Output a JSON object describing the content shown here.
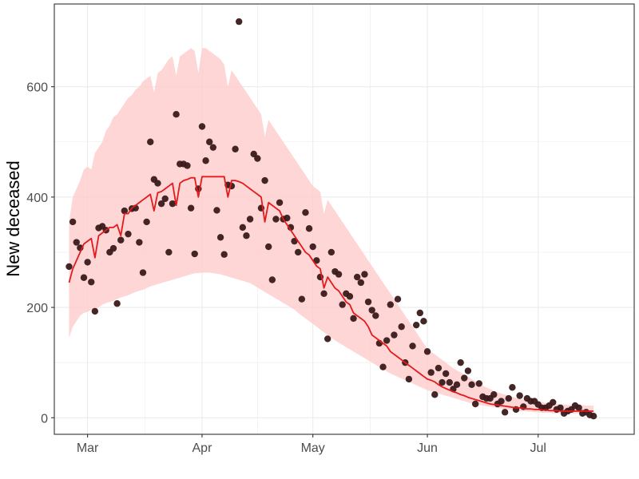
{
  "chart_data": {
    "type": "scatter",
    "title": "",
    "xlabel": "",
    "ylabel": "New deceased",
    "x_ticks": [
      {
        "label": "Mar",
        "date": "2020-03-01"
      },
      {
        "label": "Apr",
        "date": "2020-04-01"
      },
      {
        "label": "May",
        "date": "2020-05-01"
      },
      {
        "label": "Jun",
        "date": "2020-06-01"
      },
      {
        "label": "Jul",
        "date": "2020-07-01"
      }
    ],
    "y_ticks": [
      0,
      200,
      400,
      600
    ],
    "xlim": [
      "2020-02-21",
      "2020-07-27"
    ],
    "ylim": [
      -30,
      750
    ],
    "grid": true,
    "legend": "none",
    "colors": {
      "points": "#3a1a1a",
      "fit_line": "#e41a1c",
      "band": "#ffcccc",
      "grid": "#ebebeb",
      "panel_border": "#333333"
    },
    "series": [
      {
        "kind": "points",
        "x_start": "2020-02-25",
        "y": [
          274,
          355,
          318,
          308,
          254,
          282,
          246,
          193,
          344,
          347,
          340,
          300,
          307,
          207,
          322,
          375,
          333,
          379,
          380,
          318,
          263,
          355,
          500,
          432,
          425,
          388,
          397,
          300,
          388,
          550,
          460,
          460,
          457,
          380,
          297,
          415,
          528,
          466,
          500,
          490,
          376,
          327,
          296,
          422,
          420,
          487,
          718,
          345,
          330,
          360,
          478,
          470,
          380,
          430,
          310,
          250,
          360,
          390,
          360,
          362,
          345,
          320,
          300,
          215,
          372,
          343,
          310,
          285,
          255,
          225,
          143,
          300,
          265,
          260,
          205,
          225,
          220,
          180,
          255,
          245,
          260,
          210,
          195,
          185,
          135,
          92,
          140,
          205,
          150,
          215,
          165,
          100,
          70,
          130,
          168,
          190,
          175,
          120,
          82,
          42,
          90,
          64,
          80,
          64,
          52,
          60,
          100,
          72,
          85,
          60,
          25,
          62,
          38,
          35,
          35,
          42,
          25,
          30,
          10,
          35,
          55,
          15,
          40,
          20,
          35,
          30,
          30,
          24,
          18,
          18,
          22,
          28,
          15,
          18,
          8,
          12,
          15,
          22,
          18,
          8,
          10,
          5,
          3
        ]
      },
      {
        "kind": "line",
        "x_start": "2020-02-25",
        "y": [
          245,
          270,
          285,
          300,
          315,
          320,
          325,
          290,
          330,
          335,
          340,
          345,
          345,
          350,
          330,
          370,
          370,
          380,
          385,
          390,
          395,
          400,
          405,
          375,
          408,
          410,
          415,
          420,
          425,
          385,
          425,
          430,
          432,
          435,
          435,
          400,
          437,
          437,
          437,
          437,
          437,
          437,
          437,
          400,
          430,
          430,
          428,
          425,
          420,
          415,
          410,
          405,
          400,
          355,
          390,
          385,
          380,
          375,
          360,
          350,
          340,
          330,
          320,
          310,
          300,
          295,
          285,
          275,
          270,
          235,
          255,
          245,
          235,
          230,
          220,
          210,
          205,
          190,
          185,
          180,
          175,
          165,
          150,
          145,
          140,
          135,
          130,
          120,
          115,
          110,
          105,
          100,
          95,
          90,
          85,
          80,
          75,
          70,
          68,
          65,
          60,
          56,
          53,
          50,
          47,
          45,
          42,
          40,
          37,
          35,
          33,
          31,
          29,
          27,
          25,
          24,
          23,
          22,
          21,
          20,
          19,
          18,
          18,
          17,
          16,
          16,
          15,
          15,
          14,
          14,
          13,
          13,
          13,
          12,
          12,
          12,
          12,
          12,
          12,
          12,
          12,
          12,
          12
        ]
      },
      {
        "kind": "band",
        "x_start": "2020-02-25",
        "lower": [
          145,
          165,
          175,
          185,
          190,
          192,
          195,
          197,
          200,
          205,
          208,
          210,
          212,
          215,
          218,
          220,
          222,
          225,
          228,
          230,
          232,
          235,
          238,
          240,
          242,
          244,
          246,
          248,
          250,
          252,
          254,
          256,
          258,
          260,
          262,
          262,
          263,
          263,
          263,
          262,
          261,
          260,
          258,
          256,
          254,
          252,
          250,
          248,
          246,
          244,
          240,
          236,
          232,
          228,
          224,
          220,
          216,
          212,
          208,
          204,
          200,
          196,
          190,
          185,
          180,
          175,
          170,
          165,
          160,
          155,
          150,
          145,
          140,
          136,
          132,
          128,
          124,
          120,
          116,
          112,
          108,
          104,
          100,
          96,
          92,
          88,
          84,
          80,
          77,
          74,
          71,
          68,
          65,
          62,
          59,
          56,
          53,
          50,
          48,
          46,
          44,
          42,
          40,
          38,
          36,
          34,
          32,
          30,
          28,
          26,
          24,
          23,
          22,
          21,
          20,
          19,
          18,
          17,
          16,
          15,
          14,
          13,
          12,
          12,
          11,
          11,
          10,
          10,
          9,
          9,
          9,
          8,
          8,
          8,
          8,
          8,
          8,
          8,
          8,
          8,
          8,
          8,
          8
        ],
        "upper": [
          355,
          400,
          415,
          430,
          450,
          455,
          450,
          480,
          490,
          500,
          520,
          530,
          545,
          550,
          560,
          570,
          580,
          585,
          595,
          600,
          610,
          615,
          620,
          590,
          625,
          630,
          640,
          650,
          655,
          620,
          655,
          660,
          665,
          670,
          665,
          625,
          670,
          670,
          665,
          660,
          655,
          650,
          640,
          600,
          630,
          620,
          610,
          600,
          590,
          580,
          570,
          560,
          550,
          510,
          540,
          530,
          520,
          510,
          500,
          490,
          480,
          470,
          460,
          450,
          440,
          430,
          420,
          415,
          410,
          370,
          395,
          385,
          375,
          365,
          355,
          345,
          335,
          325,
          315,
          305,
          295,
          285,
          275,
          265,
          255,
          245,
          235,
          225,
          215,
          205,
          195,
          185,
          175,
          165,
          155,
          145,
          135,
          125,
          120,
          115,
          110,
          105,
          100,
          95,
          90,
          86,
          82,
          78,
          74,
          70,
          66,
          62,
          58,
          55,
          52,
          49,
          46,
          44,
          42,
          40,
          38,
          36,
          34,
          33,
          32,
          31,
          30,
          29,
          28,
          27,
          26,
          25,
          25,
          24,
          24,
          23,
          23,
          23,
          23,
          23,
          22,
          22,
          22
        ]
      }
    ]
  }
}
